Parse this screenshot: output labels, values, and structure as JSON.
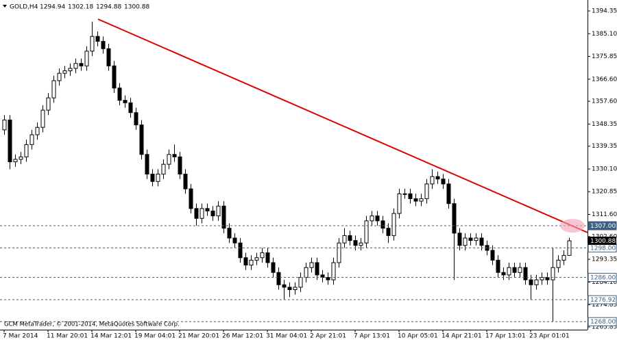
{
  "chart_data": {
    "type": "candlestick",
    "symbol": "GOLD,H4",
    "footer": "GCM MetaTrader, © 2001-2014, MetaQuotes Software Corp.",
    "categories": [
      "7 Mar 2014",
      null,
      null,
      null,
      null,
      null,
      null,
      null,
      "11 Mar 20:01",
      null,
      null,
      null,
      null,
      null,
      null,
      null,
      "14 Mar 12:01",
      null,
      null,
      null,
      null,
      null,
      null,
      null,
      "19 Mar 04:01",
      null,
      null,
      null,
      null,
      null,
      null,
      null,
      "21 Mar 20:01",
      null,
      null,
      null,
      null,
      null,
      null,
      null,
      "26 Mar 12:01",
      null,
      null,
      null,
      null,
      null,
      null,
      null,
      "31 Mar 04:01",
      null,
      null,
      null,
      null,
      null,
      null,
      null,
      "2 Apr 21:01",
      null,
      null,
      null,
      null,
      null,
      null,
      null,
      "7 Apr 13:01",
      null,
      null,
      null,
      null,
      null,
      null,
      null,
      "10 Apr 05:01",
      null,
      null,
      null,
      null,
      null,
      null,
      null,
      "14 Apr 21:01",
      null,
      null,
      null,
      null,
      null,
      null,
      null,
      "17 Apr 13:01",
      null,
      null,
      null,
      null,
      null,
      null,
      null,
      "23 Apr 01:01",
      null,
      null,
      null,
      null,
      null,
      null,
      null
    ],
    "series": [
      {
        "up_color": "#ffffff",
        "down_color": "#000000",
        "open": [
          1346,
          1350,
          1333,
          1334,
          1335,
          1340,
          1344,
          1347,
          1354,
          1359,
          1366,
          1369,
          1370,
          1371,
          1373,
          1372,
          1378,
          1384,
          1382,
          1379,
          1372,
          1363,
          1358,
          1357,
          1353,
          1348,
          1336,
          1328,
          1325,
          1328,
          1332,
          1336,
          1335,
          1328,
          1322,
          1314,
          1310,
          1314,
          1313,
          1311,
          1315,
          1306,
          1302,
          1300,
          1294,
          1291,
          1293,
          1294,
          1296,
          1292,
          1288,
          1283,
          1282,
          1281,
          1282,
          1286,
          1290,
          1292,
          1287,
          1286,
          1285,
          1292,
          1300,
          1303,
          1301,
          1299,
          1300,
          1309,
          1311,
          1309,
          1306,
          1303,
          1312,
          1320,
          1320,
          1318,
          1317,
          1318,
          1324,
          1327,
          1326,
          1324,
          1316,
          1304,
          1299,
          1302,
          1301,
          1302,
          1299,
          1297,
          1293,
          1288,
          1287,
          1290,
          1288,
          1290,
          1285,
          1283,
          1285,
          1286,
          1285,
          1290,
          1293,
          1294.94
        ],
        "high": [
          1352,
          1352,
          1336,
          1337,
          1342,
          1346,
          1349,
          1356,
          1361,
          1368,
          1371,
          1372,
          1373,
          1375,
          1375,
          1380,
          1390,
          1386,
          1384,
          1381,
          1374,
          1365,
          1360,
          1359,
          1355,
          1350,
          1338,
          1330,
          1330,
          1334,
          1338,
          1340,
          1337,
          1330,
          1324,
          1316,
          1316,
          1316,
          1315,
          1317,
          1317,
          1308,
          1304,
          1302,
          1296,
          1295,
          1296,
          1298,
          1298,
          1294,
          1290,
          1285,
          1284,
          1284,
          1288,
          1292,
          1294,
          1294,
          1289,
          1288,
          1294,
          1302,
          1306,
          1305,
          1303,
          1302,
          1311,
          1313,
          1313,
          1311,
          1308,
          1314,
          1322,
          1322,
          1322,
          1320,
          1320,
          1326,
          1330,
          1329,
          1328,
          1326,
          1318,
          1306,
          1304,
          1304,
          1304,
          1304,
          1301,
          1299,
          1295,
          1290,
          1292,
          1292,
          1292,
          1292,
          1287,
          1287,
          1288,
          1288,
          1298,
          1295,
          1297,
          1302.18
        ],
        "low": [
          1344,
          1330,
          1331,
          1332,
          1333,
          1338,
          1342,
          1345,
          1352,
          1357,
          1364,
          1367,
          1368,
          1369,
          1370,
          1370,
          1376,
          1380,
          1377,
          1370,
          1361,
          1356,
          1355,
          1351,
          1346,
          1334,
          1326,
          1323,
          1323,
          1326,
          1330,
          1333,
          1326,
          1320,
          1312,
          1307,
          1308,
          1311,
          1309,
          1309,
          1304,
          1300,
          1298,
          1292,
          1289,
          1289,
          1291,
          1292,
          1290,
          1286,
          1281,
          1277,
          1278,
          1279,
          1280,
          1284,
          1288,
          1285,
          1284,
          1283,
          1283,
          1290,
          1298,
          1299,
          1297,
          1297,
          1298,
          1307,
          1307,
          1304,
          1300,
          1301,
          1310,
          1318,
          1316,
          1315,
          1315,
          1316,
          1322,
          1324,
          1322,
          1314,
          1285,
          1297,
          1297,
          1299,
          1299,
          1297,
          1295,
          1291,
          1286,
          1285,
          1285,
          1286,
          1286,
          1283,
          1277,
          1281,
          1283,
          1283,
          1268,
          1288,
          1291,
          1294.88
        ],
        "close": [
          1350,
          1333,
          1334,
          1335,
          1340,
          1344,
          1347,
          1354,
          1359,
          1366,
          1369,
          1370,
          1371,
          1373,
          1372,
          1378,
          1384,
          1382,
          1379,
          1372,
          1363,
          1358,
          1357,
          1353,
          1348,
          1336,
          1328,
          1325,
          1328,
          1332,
          1336,
          1335,
          1328,
          1322,
          1314,
          1310,
          1314,
          1313,
          1311,
          1315,
          1306,
          1302,
          1300,
          1294,
          1291,
          1293,
          1294,
          1296,
          1292,
          1288,
          1283,
          1282,
          1281,
          1282,
          1286,
          1290,
          1292,
          1287,
          1286,
          1285,
          1292,
          1300,
          1303,
          1301,
          1299,
          1300,
          1309,
          1311,
          1309,
          1306,
          1303,
          1312,
          1320,
          1320,
          1318,
          1317,
          1318,
          1324,
          1327,
          1326,
          1324,
          1316,
          1304,
          1299,
          1302,
          1301,
          1302,
          1299,
          1297,
          1293,
          1288,
          1287,
          1290,
          1288,
          1290,
          1285,
          1283,
          1285,
          1286,
          1285,
          1290,
          1293,
          1294.94,
          1300.88
        ]
      }
    ],
    "ylim": [
      1264.73,
      1398.8
    ],
    "yticks": [
      1394.35,
      {
        "value": 1385.1,
        "label": "1385.10"
      },
      1375.85,
      {
        "value": 1366.6,
        "label": "1366.60"
      },
      {
        "value": 1357.6,
        "label": "1357.60"
      },
      1348.35,
      1339.35,
      {
        "value": 1330.1,
        "label": "1330.10"
      },
      1320.85,
      {
        "value": 1311.6,
        "label": "1311.60"
      },
      {
        "value": 1302.6,
        "label": "1302.60"
      },
      1293.35,
      {
        "value": 1284.1,
        "label": "1284.10"
      },
      1274.85,
      1265.85
    ],
    "levels": [
      {
        "value": 1307,
        "label": "1307.00"
      },
      {
        "value": 1298,
        "label": "1298.00"
      },
      {
        "value": 1286,
        "label": "1286.00"
      },
      1276.92,
      {
        "value": 1268,
        "label": "1268.00"
      }
    ],
    "level_color": "#3d5f80"
  }
}
